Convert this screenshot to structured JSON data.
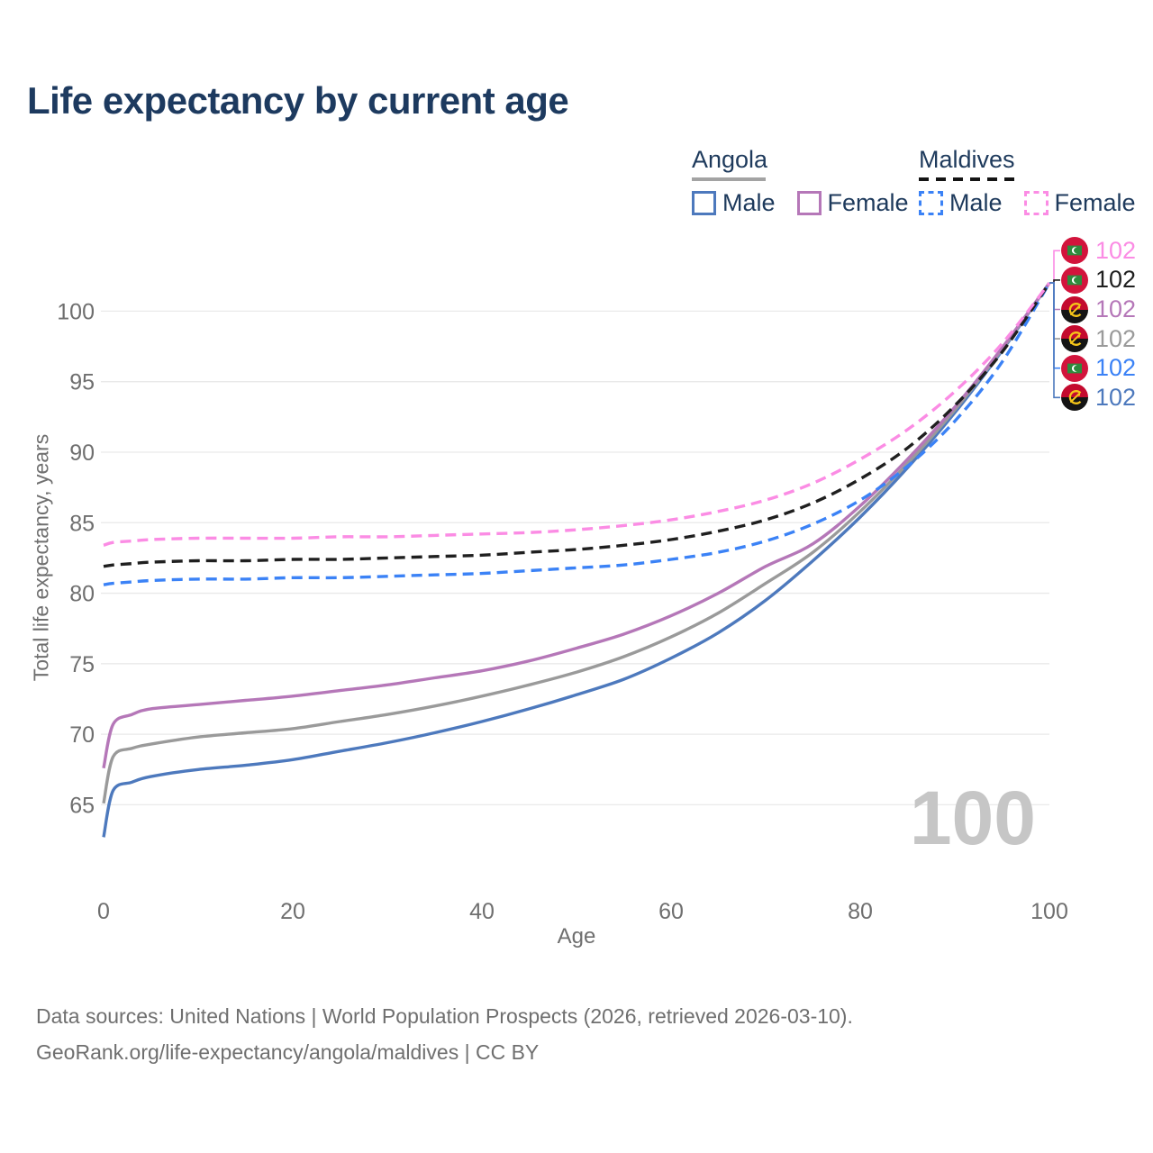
{
  "watermark": "100",
  "legend": {
    "groups": [
      {
        "name": "Angola",
        "underline_style": "solid",
        "underline_color": "#a3a3a3",
        "underline_width": 82,
        "items": [
          {
            "label": "Male",
            "color": "#4d79bd",
            "style": "solid"
          },
          {
            "label": "Female",
            "color": "#b577b8",
            "style": "solid"
          }
        ]
      },
      {
        "name": "Maldives",
        "underline_style": "dashed",
        "underline_color": "#141414",
        "underline_width": 108,
        "items": [
          {
            "label": "Male",
            "color": "#3b82f6",
            "style": "dashed"
          },
          {
            "label": "Female",
            "color": "#fb8ce4",
            "style": "dashed"
          }
        ]
      }
    ]
  },
  "chart_data": {
    "type": "line",
    "title": "Life expectancy by current age",
    "xlabel": "Age",
    "ylabel": "Total life expectancy, years",
    "x_ticks": [
      0,
      20,
      40,
      60,
      80,
      100
    ],
    "y_ticks": [
      65,
      70,
      75,
      80,
      85,
      90,
      95,
      100
    ],
    "xlim": [
      0,
      100
    ],
    "ylim": [
      60.5,
      105.5
    ],
    "grid": "horizontal-only",
    "legend_position": "top-right",
    "x": [
      0,
      1,
      3,
      5,
      10,
      15,
      20,
      25,
      30,
      35,
      40,
      45,
      50,
      55,
      60,
      65,
      70,
      75,
      80,
      85,
      90,
      95,
      100
    ],
    "series": [
      {
        "id": "angola-male",
        "country": "Angola",
        "sex": "Male",
        "style": "solid",
        "color": "#4d79bd",
        "values": [
          62.7,
          66.0,
          66.6,
          67.0,
          67.5,
          67.8,
          68.2,
          68.8,
          69.4,
          70.1,
          70.9,
          71.8,
          72.8,
          73.9,
          75.4,
          77.2,
          79.5,
          82.3,
          85.4,
          88.9,
          92.8,
          97.2,
          102
        ]
      },
      {
        "id": "angola-both",
        "country": "Angola",
        "sex": "Both sexes",
        "style": "solid",
        "color": "#9a9a9a",
        "values": [
          65.1,
          68.4,
          69.0,
          69.3,
          69.8,
          70.1,
          70.4,
          70.9,
          71.4,
          72.0,
          72.7,
          73.5,
          74.4,
          75.5,
          76.9,
          78.6,
          80.7,
          82.9,
          85.8,
          89.2,
          93.0,
          97.3,
          102
        ]
      },
      {
        "id": "angola-female",
        "country": "Angola",
        "sex": "Female",
        "style": "solid",
        "color": "#b577b8",
        "values": [
          67.6,
          70.7,
          71.4,
          71.8,
          72.1,
          72.4,
          72.7,
          73.1,
          73.5,
          74.0,
          74.5,
          75.2,
          76.1,
          77.1,
          78.4,
          80.0,
          81.9,
          83.5,
          86.2,
          89.5,
          93.2,
          97.4,
          102
        ]
      },
      {
        "id": "maldives-male",
        "country": "Maldives",
        "sex": "Male",
        "style": "dashed",
        "color": "#3b82f6",
        "values": [
          80.6,
          80.7,
          80.8,
          80.9,
          81.0,
          81.0,
          81.1,
          81.1,
          81.2,
          81.3,
          81.4,
          81.6,
          81.8,
          82.0,
          82.4,
          82.9,
          83.7,
          84.9,
          86.6,
          89.0,
          92.2,
          96.4,
          102
        ]
      },
      {
        "id": "maldives-both",
        "country": "Maldives",
        "sex": "Both sexes",
        "style": "dashed",
        "color": "#1f1f1f",
        "values": [
          81.9,
          82.0,
          82.1,
          82.2,
          82.3,
          82.3,
          82.4,
          82.4,
          82.5,
          82.6,
          82.7,
          82.9,
          83.1,
          83.4,
          83.8,
          84.4,
          85.2,
          86.4,
          88.1,
          90.3,
          93.3,
          97.1,
          102
        ]
      },
      {
        "id": "maldives-female",
        "country": "Maldives",
        "sex": "Female",
        "style": "dashed",
        "color": "#fb8ce4",
        "values": [
          83.4,
          83.6,
          83.7,
          83.8,
          83.9,
          83.9,
          83.9,
          84.0,
          84.0,
          84.1,
          84.2,
          84.3,
          84.5,
          84.8,
          85.2,
          85.8,
          86.6,
          87.8,
          89.5,
          91.6,
          94.3,
          97.7,
          102
        ]
      }
    ]
  },
  "end_labels": [
    {
      "value": "102",
      "flag": "maldives",
      "series": "maldives-female",
      "color": "#fb8ce4"
    },
    {
      "value": "102",
      "flag": "maldives",
      "series": "maldives-both",
      "color": "#1f1f1f"
    },
    {
      "value": "102",
      "flag": "angola",
      "series": "angola-female",
      "color": "#b577b8"
    },
    {
      "value": "102",
      "flag": "angola",
      "series": "angola-both",
      "color": "#9a9a9a"
    },
    {
      "value": "102",
      "flag": "maldives",
      "series": "maldives-male",
      "color": "#3b82f6"
    },
    {
      "value": "102",
      "flag": "angola",
      "series": "angola-male",
      "color": "#4d79bd"
    }
  ],
  "footer": {
    "line1": "Data sources: United Nations | World Population Prospects (2026, retrieved 2026-03-10).",
    "line2": "GeoRank.org/life-expectancy/angola/maldives | CC BY"
  },
  "colors": {
    "title_text": "#1d3a5f",
    "legend_text": "#1e3a5c",
    "axis_text": "#6f6f6f",
    "gridline": "#e9e9e9",
    "watermark": "#c6c6c6"
  }
}
